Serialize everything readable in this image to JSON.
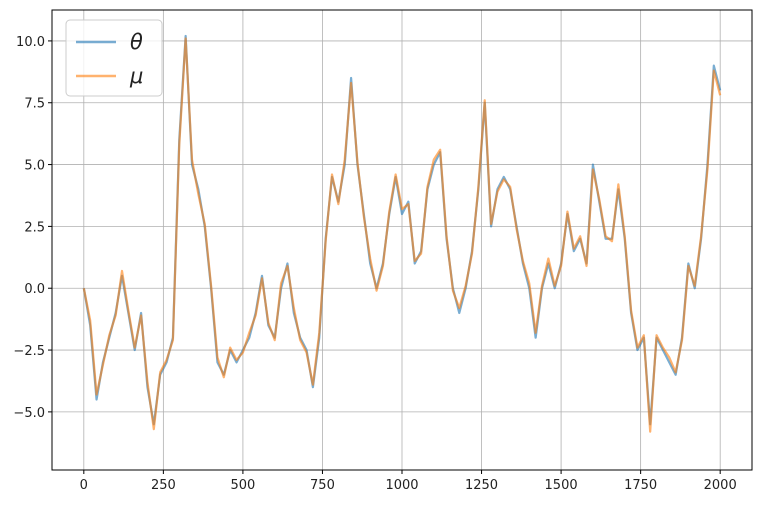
{
  "chart_data": {
    "type": "line",
    "x": [
      0,
      20,
      40,
      60,
      80,
      100,
      120,
      140,
      160,
      180,
      200,
      220,
      240,
      260,
      280,
      300,
      320,
      340,
      360,
      380,
      400,
      420,
      440,
      460,
      480,
      500,
      520,
      540,
      560,
      580,
      600,
      620,
      640,
      660,
      680,
      700,
      720,
      740,
      760,
      780,
      800,
      820,
      840,
      860,
      880,
      900,
      920,
      940,
      960,
      980,
      1000,
      1020,
      1040,
      1060,
      1080,
      1100,
      1120,
      1140,
      1160,
      1180,
      1200,
      1220,
      1240,
      1260,
      1280,
      1300,
      1320,
      1340,
      1360,
      1380,
      1400,
      1420,
      1440,
      1460,
      1480,
      1500,
      1520,
      1540,
      1560,
      1580,
      1600,
      1620,
      1640,
      1660,
      1680,
      1700,
      1720,
      1740,
      1760,
      1780,
      1800,
      1820,
      1840,
      1860,
      1880,
      1900,
      1920,
      1940,
      1960,
      1980,
      2000
    ],
    "series": [
      {
        "name": "θ",
        "color": "#1f77b4",
        "values": [
          0,
          -1.5,
          -4.5,
          -3,
          -2,
          -1,
          0.5,
          -1,
          -2.5,
          -1,
          -4,
          -5.5,
          -3.5,
          -3,
          -2,
          6,
          10.2,
          5,
          4,
          2.5,
          0,
          -3,
          -3.5,
          -2.5,
          -3,
          -2.5,
          -2,
          -1,
          0.5,
          -1.5,
          -2,
          0,
          1,
          -1,
          -2,
          -2.5,
          -4,
          -2,
          2,
          4.5,
          3.5,
          5,
          8.5,
          5,
          3,
          1,
          0,
          1,
          3,
          4.5,
          3,
          3.5,
          1,
          1.5,
          4,
          5,
          5.5,
          2,
          0,
          -1,
          0,
          1.5,
          4,
          7.5,
          2.5,
          4,
          4.5,
          4,
          2.5,
          1,
          0,
          -2,
          0,
          1,
          0,
          1,
          3,
          1.5,
          2,
          1,
          5,
          3.5,
          2,
          2,
          4,
          2,
          -1,
          -2.5,
          -2,
          -5.5,
          -2,
          -2.5,
          -3,
          -3.5,
          -2,
          1,
          0,
          2,
          5,
          9,
          8
        ]
      },
      {
        "name": "μ",
        "color": "#ff7f0e",
        "values": [
          0,
          -1.3,
          -4.3,
          -3.1,
          -1.9,
          -1.1,
          0.7,
          -0.9,
          -2.4,
          -1.1,
          -3.8,
          -5.7,
          -3.4,
          -2.9,
          -2.1,
          5.8,
          10.1,
          5.2,
          3.8,
          2.6,
          0.1,
          -2.8,
          -3.6,
          -2.4,
          -2.9,
          -2.6,
          -1.8,
          -1.1,
          0.4,
          -1.4,
          -2.1,
          0.2,
          0.9,
          -0.8,
          -2.1,
          -2.6,
          -3.9,
          -1.8,
          1.9,
          4.6,
          3.4,
          5.2,
          8.3,
          5.1,
          2.9,
          1.2,
          -0.1,
          0.9,
          3.1,
          4.6,
          3.2,
          3.4,
          1.1,
          1.4,
          4.1,
          5.2,
          5.6,
          2.1,
          -0.1,
          -0.8,
          0.1,
          1.4,
          4.1,
          7.6,
          2.6,
          3.9,
          4.4,
          4.1,
          2.4,
          1.1,
          0.2,
          -1.8,
          0.1,
          1.2,
          0.1,
          0.9,
          3.1,
          1.6,
          2.1,
          0.9,
          4.8,
          3.6,
          2.1,
          1.9,
          4.2,
          2.1,
          -0.9,
          -2.4,
          -1.9,
          -5.8,
          -1.9,
          -2.4,
          -2.8,
          -3.4,
          -2.1,
          0.9,
          0.1,
          2.1,
          4.8,
          8.8,
          7.8
        ]
      }
    ],
    "xlim": [
      -100,
      2100
    ],
    "ylim": [
      -7.35,
      11.25
    ],
    "xticks": [
      0,
      250,
      500,
      750,
      1000,
      1250,
      1500,
      1750,
      2000
    ],
    "yticks": [
      {
        "value": -5,
        "label": "−5.0"
      },
      {
        "value": -2.5,
        "label": "−2.5"
      },
      {
        "value": 0,
        "label": "0.0"
      },
      {
        "value": 2.5,
        "label": "2.5"
      },
      {
        "value": 5,
        "label": "5.0"
      },
      {
        "value": 7.5,
        "label": "7.5"
      },
      {
        "value": 10,
        "label": "10.0"
      }
    ],
    "grid": true,
    "legend": "upper left"
  }
}
